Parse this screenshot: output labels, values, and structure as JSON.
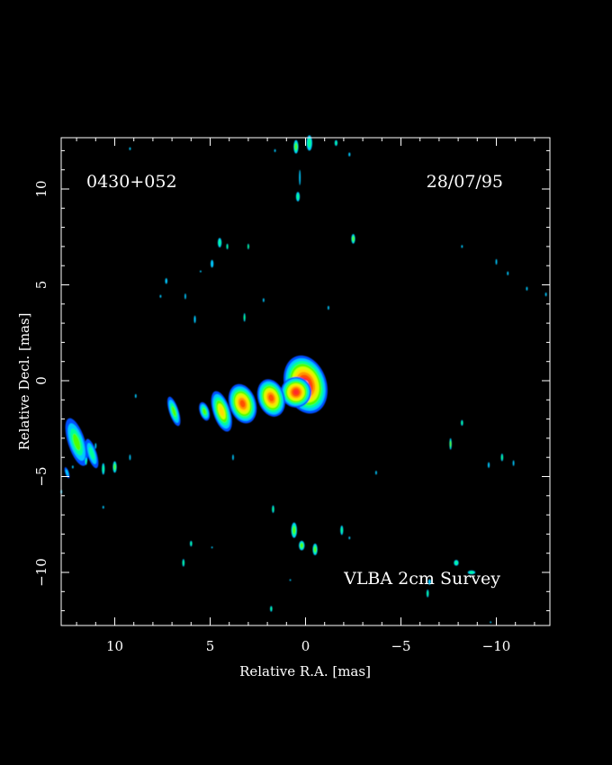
{
  "chart_data": {
    "type": "heatmap",
    "title": "",
    "source": "0430+052",
    "date": "28/07/95",
    "survey": "VLBA 2cm Survey",
    "xlabel": "Relative R.A. [mas]",
    "ylabel": "Relative Decl. [mas]",
    "xlim": [
      12.8,
      -12.8
    ],
    "ylim": [
      -12.8,
      12.6
    ],
    "xticks": [
      10,
      5,
      0,
      -5,
      -10
    ],
    "xtick_labels": [
      "10",
      "5",
      "0",
      "−5",
      "−10"
    ],
    "yticks": [
      10,
      5,
      0,
      -5,
      -10
    ],
    "ytick_labels": [
      "10",
      "5",
      "0",
      "−5",
      "−10"
    ],
    "colors": {
      "background": "#000000",
      "frame": "#ffffff",
      "levels": [
        "#0050ff",
        "#00c8ff",
        "#00ff96",
        "#50ff00",
        "#d2ff00",
        "#ffdc00",
        "#ff9600",
        "#ff5000",
        "#ff2a2a",
        "#ffffff"
      ]
    },
    "jet": [
      {
        "x": 0.0,
        "y": -0.2,
        "v": 10,
        "w": 2.2,
        "h": 3.1
      },
      {
        "x": 0.5,
        "y": -0.6,
        "v": 9,
        "w": 1.6,
        "h": 1.6
      },
      {
        "x": 1.8,
        "y": -0.9,
        "v": 8,
        "w": 1.4,
        "h": 2.0
      },
      {
        "x": 3.3,
        "y": -1.2,
        "v": 8,
        "w": 1.4,
        "h": 2.1
      },
      {
        "x": 4.4,
        "y": -1.6,
        "v": 6,
        "w": 0.9,
        "h": 2.2
      },
      {
        "x": 5.3,
        "y": -1.6,
        "v": 4,
        "w": 0.5,
        "h": 1.0
      },
      {
        "x": 6.9,
        "y": -1.6,
        "v": 4,
        "w": 0.5,
        "h": 1.6
      },
      {
        "x": 12.0,
        "y": -3.2,
        "v": 4,
        "w": 0.9,
        "h": 2.6
      },
      {
        "x": 11.2,
        "y": -3.8,
        "v": 3,
        "w": 0.5,
        "h": 1.6
      },
      {
        "x": 12.5,
        "y": -4.8,
        "v": 2,
        "w": 0.2,
        "h": 0.6
      }
    ],
    "blobs": [
      {
        "x": 0.5,
        "y": 12.2,
        "v": 3,
        "w": 0.25,
        "h": 0.7
      },
      {
        "x": -0.2,
        "y": 12.4,
        "v": 2,
        "w": 0.3,
        "h": 0.8
      },
      {
        "x": -1.6,
        "y": 12.4,
        "v": 2,
        "w": 0.15,
        "h": 0.3
      },
      {
        "x": -2.3,
        "y": 11.8,
        "v": 1,
        "w": 0.1,
        "h": 0.2
      },
      {
        "x": 1.6,
        "y": 12.0,
        "v": 1,
        "w": 0.08,
        "h": 0.15
      },
      {
        "x": 9.2,
        "y": 12.1,
        "v": 1,
        "w": 0.08,
        "h": 0.15
      },
      {
        "x": 0.3,
        "y": 10.6,
        "v": 1,
        "w": 0.08,
        "h": 0.8
      },
      {
        "x": 0.4,
        "y": 9.6,
        "v": 2,
        "w": 0.2,
        "h": 0.5
      },
      {
        "x": -2.5,
        "y": 7.4,
        "v": 3,
        "w": 0.2,
        "h": 0.5
      },
      {
        "x": -8.2,
        "y": 7.0,
        "v": 1,
        "w": 0.06,
        "h": 0.15
      },
      {
        "x": 4.5,
        "y": 7.2,
        "v": 2,
        "w": 0.2,
        "h": 0.5
      },
      {
        "x": 4.1,
        "y": 7.0,
        "v": 2,
        "w": 0.1,
        "h": 0.3
      },
      {
        "x": 3.0,
        "y": 7.0,
        "v": 2,
        "w": 0.08,
        "h": 0.3
      },
      {
        "x": 4.9,
        "y": 6.1,
        "v": 1,
        "w": 0.15,
        "h": 0.4
      },
      {
        "x": 5.5,
        "y": 5.7,
        "v": 1,
        "w": 0.05,
        "h": 0.1
      },
      {
        "x": 7.3,
        "y": 5.2,
        "v": 1,
        "w": 0.12,
        "h": 0.3
      },
      {
        "x": 7.6,
        "y": 4.4,
        "v": 1,
        "w": 0.05,
        "h": 0.15
      },
      {
        "x": 6.3,
        "y": 4.4,
        "v": 1,
        "w": 0.08,
        "h": 0.3
      },
      {
        "x": 5.8,
        "y": 3.2,
        "v": 1,
        "w": 0.1,
        "h": 0.4
      },
      {
        "x": 3.2,
        "y": 3.3,
        "v": 2,
        "w": 0.1,
        "h": 0.45
      },
      {
        "x": 2.2,
        "y": 4.2,
        "v": 1,
        "w": 0.05,
        "h": 0.2
      },
      {
        "x": -1.2,
        "y": 3.8,
        "v": 1,
        "w": 0.05,
        "h": 0.2
      },
      {
        "x": -10.0,
        "y": 6.2,
        "v": 1,
        "w": 0.08,
        "h": 0.3
      },
      {
        "x": -10.6,
        "y": 5.6,
        "v": 1,
        "w": 0.05,
        "h": 0.2
      },
      {
        "x": -11.6,
        "y": 4.8,
        "v": 1,
        "w": 0.05,
        "h": 0.2
      },
      {
        "x": -12.6,
        "y": 4.5,
        "v": 1,
        "w": 0.05,
        "h": 0.2
      },
      {
        "x": 8.9,
        "y": -0.8,
        "v": 1,
        "w": 0.08,
        "h": 0.2
      },
      {
        "x": 11.5,
        "y": -4.2,
        "v": 2,
        "w": 0.1,
        "h": 0.4
      },
      {
        "x": 12.2,
        "y": -4.5,
        "v": 1,
        "w": 0.05,
        "h": 0.15
      },
      {
        "x": 10.0,
        "y": -4.5,
        "v": 3,
        "w": 0.2,
        "h": 0.6
      },
      {
        "x": 11.0,
        "y": -3.4,
        "v": 1,
        "w": 0.05,
        "h": 0.3
      },
      {
        "x": 9.2,
        "y": -4.0,
        "v": 1,
        "w": 0.08,
        "h": 0.3
      },
      {
        "x": 10.6,
        "y": -4.6,
        "v": 2,
        "w": 0.15,
        "h": 0.6
      },
      {
        "x": 12.8,
        "y": -5.8,
        "v": 1,
        "w": 0.05,
        "h": 0.2
      },
      {
        "x": 10.6,
        "y": -6.6,
        "v": 1,
        "w": 0.05,
        "h": 0.15
      },
      {
        "x": 3.8,
        "y": -4.0,
        "v": 1,
        "w": 0.08,
        "h": 0.3
      },
      {
        "x": -3.7,
        "y": -4.8,
        "v": 1,
        "w": 0.05,
        "h": 0.2
      },
      {
        "x": -7.6,
        "y": -3.3,
        "v": 3,
        "w": 0.12,
        "h": 0.6
      },
      {
        "x": -8.2,
        "y": -2.2,
        "v": 2,
        "w": 0.12,
        "h": 0.3
      },
      {
        "x": -9.6,
        "y": -4.4,
        "v": 1,
        "w": 0.1,
        "h": 0.3
      },
      {
        "x": -10.3,
        "y": -4.0,
        "v": 2,
        "w": 0.12,
        "h": 0.4
      },
      {
        "x": -10.9,
        "y": -4.3,
        "v": 1,
        "w": 0.08,
        "h": 0.3
      },
      {
        "x": 1.7,
        "y": -6.7,
        "v": 2,
        "w": 0.12,
        "h": 0.4
      },
      {
        "x": 0.6,
        "y": -7.8,
        "v": 3,
        "w": 0.3,
        "h": 0.8
      },
      {
        "x": 0.2,
        "y": -8.6,
        "v": 3,
        "w": 0.3,
        "h": 0.5
      },
      {
        "x": -0.5,
        "y": -8.8,
        "v": 3,
        "w": 0.25,
        "h": 0.6
      },
      {
        "x": -1.9,
        "y": -7.8,
        "v": 2,
        "w": 0.15,
        "h": 0.5
      },
      {
        "x": -2.3,
        "y": -8.2,
        "v": 1,
        "w": 0.05,
        "h": 0.15
      },
      {
        "x": 6.0,
        "y": -8.5,
        "v": 2,
        "w": 0.12,
        "h": 0.3
      },
      {
        "x": 6.4,
        "y": -9.5,
        "v": 2,
        "w": 0.12,
        "h": 0.4
      },
      {
        "x": 4.9,
        "y": -8.7,
        "v": 1,
        "w": 0.05,
        "h": 0.1
      },
      {
        "x": -7.9,
        "y": -9.5,
        "v": 2,
        "w": 0.25,
        "h": 0.3
      },
      {
        "x": -8.7,
        "y": -10.0,
        "v": 2,
        "w": 0.4,
        "h": 0.2
      },
      {
        "x": -6.5,
        "y": -10.5,
        "v": 1,
        "w": 0.15,
        "h": 0.3
      },
      {
        "x": -6.4,
        "y": -11.1,
        "v": 2,
        "w": 0.12,
        "h": 0.4
      },
      {
        "x": 1.8,
        "y": -11.9,
        "v": 2,
        "w": 0.12,
        "h": 0.3
      },
      {
        "x": 0.8,
        "y": -10.4,
        "v": 1,
        "w": 0.05,
        "h": 0.1
      },
      {
        "x": -9.7,
        "y": -12.6,
        "v": 1,
        "w": 0.05,
        "h": 0.1
      }
    ]
  }
}
